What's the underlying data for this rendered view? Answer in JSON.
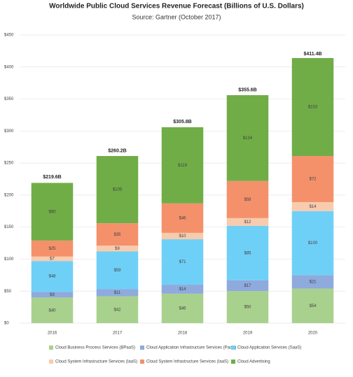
{
  "chart_data": {
    "type": "stacked-bar",
    "title": "Worldwide Public Cloud Services Revenue Forecast (Billions of U.S. Dollars)",
    "subtitle": "Source: Gartner (October 2017)",
    "categories": [
      "2016",
      "2017",
      "2018",
      "2019",
      "2020"
    ],
    "series": [
      {
        "name": "Cloud Business Process Services (BPaaS)",
        "color": "#a9d18e",
        "values": [
          40,
          42,
          46,
          50,
          54
        ],
        "value_labels": [
          "$40",
          "$42",
          "$46",
          "$50",
          "$54"
        ]
      },
      {
        "name": "Cloud Application Infrastructure Services (PaaS)",
        "color": "#8faadc",
        "values": [
          9,
          11,
          14,
          17,
          21
        ],
        "value_labels": [
          "$9",
          "$11",
          "$14",
          "$17",
          "$21"
        ]
      },
      {
        "name": "Cloud Application Services (SaaS)",
        "color": "#6fd0f7",
        "values": [
          48,
          59,
          71,
          85,
          100
        ],
        "value_labels": [
          "$48",
          "$59",
          "$71",
          "$85",
          "$100"
        ]
      },
      {
        "name": "Cloud System Infrastructure Services (IaaS)",
        "color": "#f8cbad",
        "values": [
          7,
          9,
          10,
          12,
          14
        ],
        "value_labels": [
          "$7",
          "$9",
          "$10",
          "$12",
          "$14"
        ]
      },
      {
        "name": "Cloud System Infrastructure Services (IaaS)",
        "color": "#f4916b",
        "values": [
          25,
          35,
          46,
          58,
          72
        ],
        "value_labels": [
          "$25",
          "$35",
          "$46",
          "$58",
          "$72"
        ]
      },
      {
        "name": "Cloud Advertising",
        "color": "#70ad47",
        "values": [
          90,
          105,
          119,
          134,
          153
        ],
        "value_labels": [
          "$90",
          "$105",
          "$119",
          "$134",
          "$153"
        ]
      }
    ],
    "totals": {
      "values": [
        219.6,
        260.2,
        305.8,
        355.6,
        411.4
      ],
      "value_labels": [
        "$219.6B",
        "$260.2B",
        "$305.8B",
        "$355.6B",
        "$411.4B"
      ]
    },
    "ylim": [
      0,
      450
    ],
    "yticks": [
      {
        "value": 0,
        "label": "$0"
      },
      {
        "value": 50,
        "label": "$50"
      },
      {
        "value": 100,
        "label": "$100"
      },
      {
        "value": 150,
        "label": "$150"
      },
      {
        "value": 200,
        "label": "$200"
      },
      {
        "value": 250,
        "label": "$250"
      },
      {
        "value": 300,
        "label": "$300"
      },
      {
        "value": 350,
        "label": "$350"
      },
      {
        "value": 400,
        "label": "$400"
      },
      {
        "value": 450,
        "label": "$450"
      }
    ],
    "grid": true
  }
}
